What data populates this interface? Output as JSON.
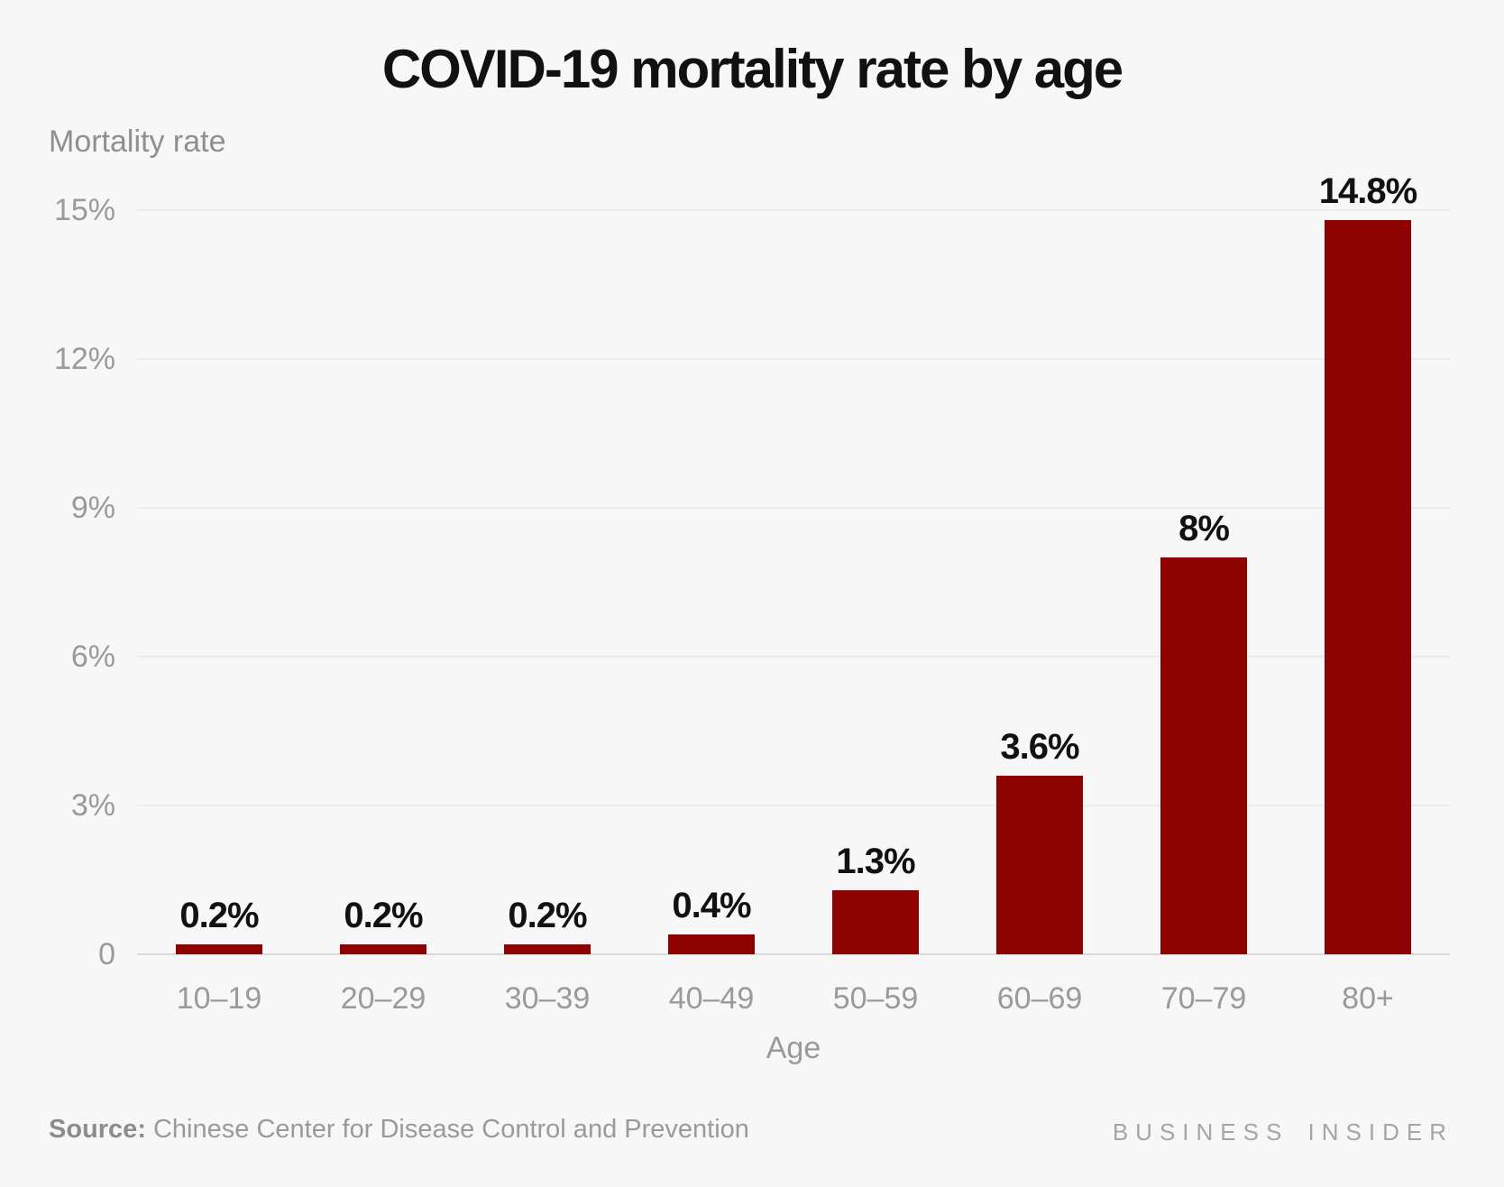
{
  "chart": {
    "title": "COVID-19 mortality rate by age",
    "y_axis_title": "Mortality rate",
    "x_axis_title": "Age"
  },
  "chart_data": {
    "type": "bar",
    "title": "COVID-19 mortality rate by age",
    "xlabel": "Age",
    "ylabel": "Mortality rate",
    "categories": [
      "10–19",
      "20–29",
      "30–39",
      "40–49",
      "50–59",
      "60–69",
      "70–79",
      "80+"
    ],
    "values": [
      0.2,
      0.2,
      0.2,
      0.4,
      1.3,
      3.6,
      8,
      14.8
    ],
    "value_labels": [
      "0.2%",
      "0.2%",
      "0.2%",
      "0.4%",
      "1.3%",
      "3.6%",
      "8%",
      "14.8%"
    ],
    "ylim": [
      0,
      15
    ],
    "yticks": [
      {
        "value": 0,
        "label": "0"
      },
      {
        "value": 3,
        "label": "3%"
      },
      {
        "value": 6,
        "label": "6%"
      },
      {
        "value": 9,
        "label": "9%"
      },
      {
        "value": 12,
        "label": "12%"
      },
      {
        "value": 15,
        "label": "15%"
      }
    ],
    "grid": "horizontal",
    "legend": "none",
    "bar_color": "#8e0202"
  },
  "footer": {
    "source_label": "Source:",
    "source_text": "Chinese Center for Disease Control and Prevention",
    "brand": "BUSINESS INSIDER"
  },
  "colors": {
    "background": "#f7f7f7",
    "bar": "#8e0202",
    "gridline": "#ececec",
    "baseline": "#d9d9d9",
    "title_text": "#111111",
    "axis_text": "#9a9a9a",
    "bar_label_text": "#111111"
  }
}
